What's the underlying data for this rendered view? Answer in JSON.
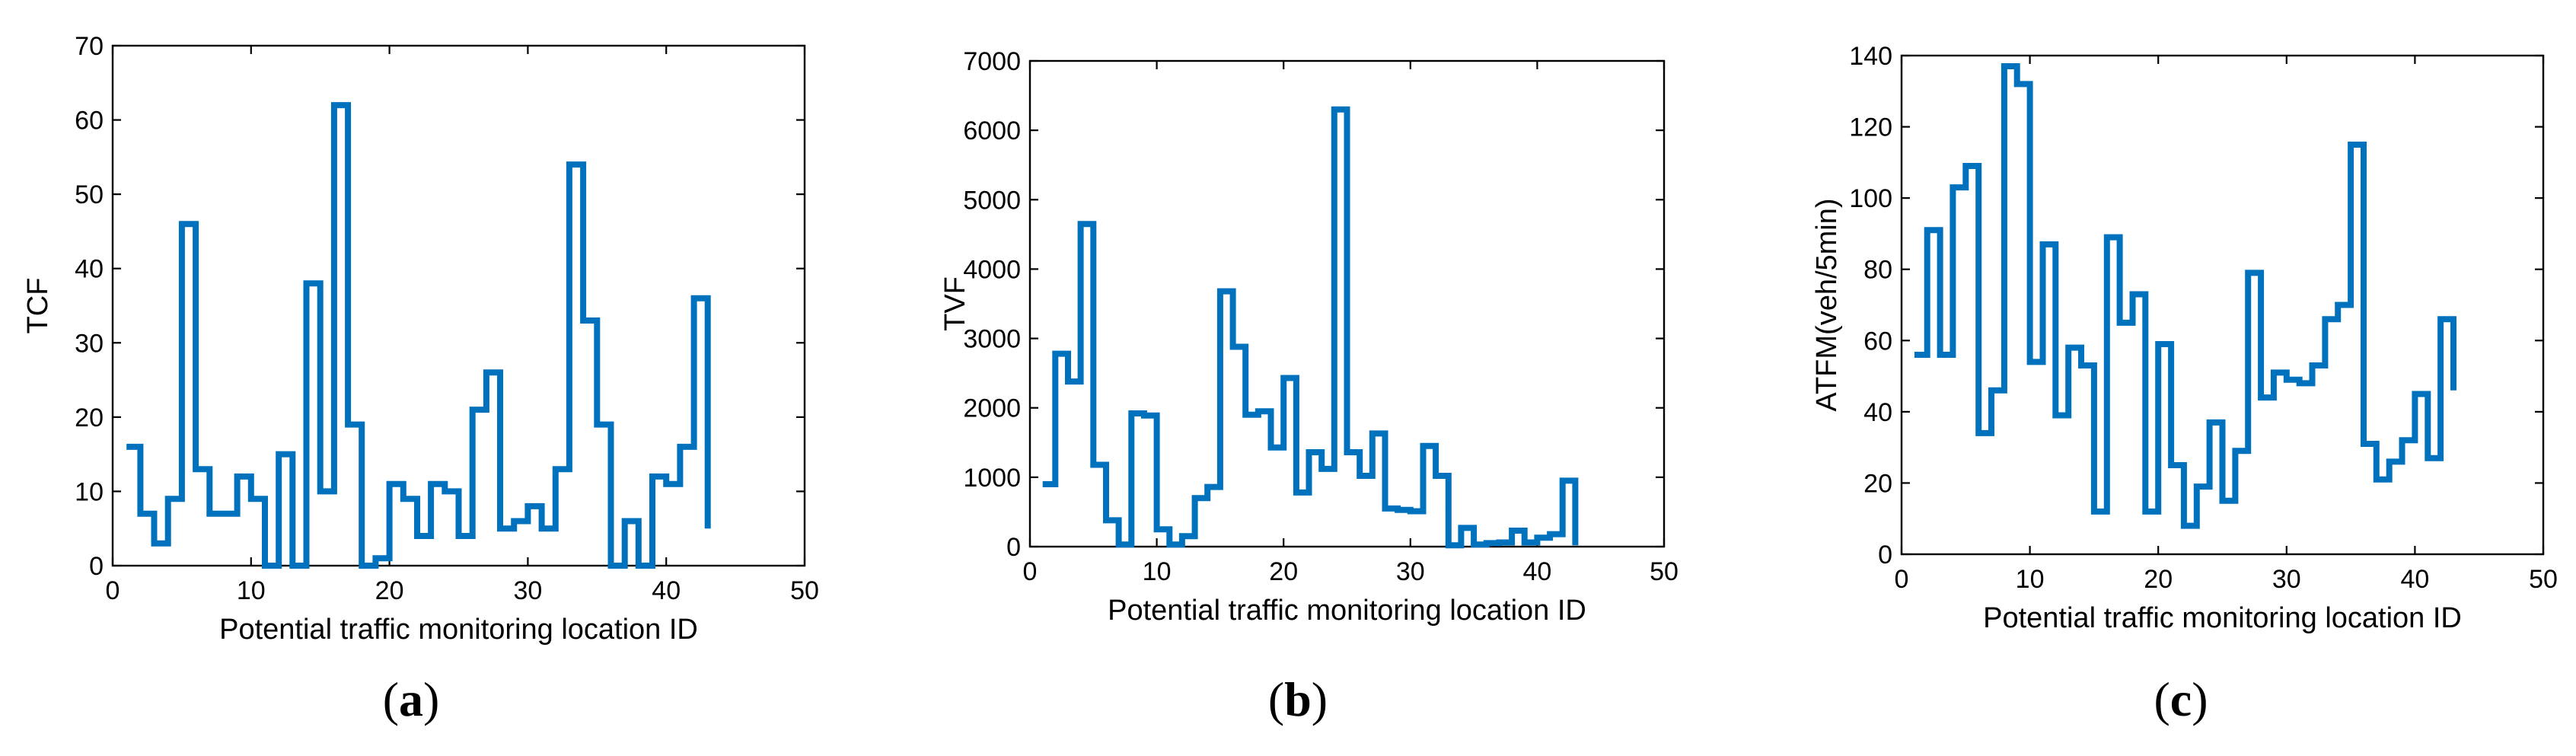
{
  "chart_data": [
    {
      "type": "line",
      "style": "stairs",
      "panel_open": "(",
      "panel_letter": "a",
      "panel_close": ")",
      "xlabel": "Potential traffic monitoring location ID",
      "ylabel": "TCF",
      "xlim": [
        0,
        50
      ],
      "ylim": [
        0,
        70
      ],
      "xticks": [
        0,
        10,
        20,
        30,
        40,
        50
      ],
      "yticks": [
        0,
        10,
        20,
        30,
        40,
        50,
        60,
        70
      ],
      "color": "#0072BD",
      "x": [
        1,
        2,
        3,
        4,
        5,
        6,
        7,
        8,
        9,
        10,
        11,
        12,
        13,
        14,
        15,
        16,
        17,
        18,
        19,
        20,
        21,
        22,
        23,
        24,
        25,
        26,
        27,
        28,
        29,
        30,
        31,
        32,
        33,
        34,
        35,
        36,
        37,
        38,
        39,
        40,
        41,
        42,
        43
      ],
      "values": [
        16,
        7,
        3,
        9,
        46,
        13,
        7,
        7,
        12,
        9,
        0,
        15,
        0,
        38,
        10,
        62,
        19,
        0,
        1,
        11,
        9,
        4,
        11,
        10,
        4,
        21,
        26,
        5,
        6,
        8,
        5,
        13,
        54,
        33,
        19,
        0,
        6,
        0,
        12,
        11,
        16,
        36,
        5
      ]
    },
    {
      "type": "line",
      "style": "stairs",
      "panel_open": "(",
      "panel_letter": "b",
      "panel_close": ")",
      "xlabel": "Potential traffic monitoring location ID",
      "ylabel": "TVF",
      "xlim": [
        0,
        50
      ],
      "ylim": [
        0,
        7000
      ],
      "xticks": [
        0,
        10,
        20,
        30,
        40,
        50
      ],
      "yticks": [
        0,
        1000,
        2000,
        3000,
        4000,
        5000,
        6000,
        7000
      ],
      "color": "#0072BD",
      "x": [
        1,
        2,
        3,
        4,
        5,
        6,
        7,
        8,
        9,
        10,
        11,
        12,
        13,
        14,
        15,
        16,
        17,
        18,
        19,
        20,
        21,
        22,
        23,
        24,
        25,
        26,
        27,
        28,
        29,
        30,
        31,
        32,
        33,
        34,
        35,
        36,
        37,
        38,
        39,
        40,
        41,
        42,
        43
      ],
      "values": [
        900,
        2780,
        2380,
        4650,
        1180,
        380,
        30,
        1920,
        1890,
        250,
        30,
        150,
        700,
        860,
        3680,
        2880,
        1900,
        1950,
        1430,
        2430,
        780,
        1360,
        1120,
        6300,
        1360,
        1020,
        1630,
        550,
        530,
        510,
        1450,
        1020,
        20,
        270,
        30,
        50,
        60,
        230,
        60,
        130,
        180,
        950,
        20
      ]
    },
    {
      "type": "line",
      "style": "stairs",
      "panel_open": "(",
      "panel_letter": "c",
      "panel_close": ")",
      "xlabel": "Potential traffic monitoring location ID",
      "ylabel": "ATFM(veh/5min)",
      "xlim": [
        0,
        50
      ],
      "ylim": [
        0,
        140
      ],
      "xticks": [
        0,
        10,
        20,
        30,
        40,
        50
      ],
      "yticks": [
        0,
        20,
        40,
        60,
        80,
        100,
        120,
        140
      ],
      "color": "#0072BD",
      "x": [
        1,
        2,
        3,
        4,
        5,
        6,
        7,
        8,
        9,
        10,
        11,
        12,
        13,
        14,
        15,
        16,
        17,
        18,
        19,
        20,
        21,
        22,
        23,
        24,
        25,
        26,
        27,
        28,
        29,
        30,
        31,
        32,
        33,
        34,
        35,
        36,
        37,
        38,
        39,
        40,
        41,
        42,
        43
      ],
      "values": [
        56,
        91,
        56,
        103,
        109,
        34,
        46,
        137,
        132,
        54,
        87,
        39,
        58,
        53,
        12,
        89,
        65,
        73,
        12,
        59,
        25,
        8,
        19,
        37,
        15,
        29,
        79,
        44,
        51,
        49,
        48,
        53,
        66,
        70,
        115,
        31,
        21,
        26,
        32,
        45,
        27,
        66,
        46
      ]
    }
  ]
}
